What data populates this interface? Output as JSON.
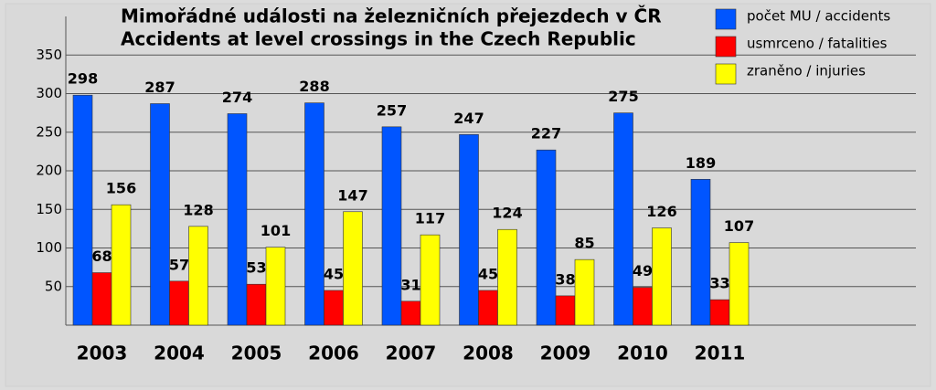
{
  "chart_data": {
    "type": "bar",
    "title": "Mimořádné události na železničních přejezdech v ČR",
    "subtitle": "Accidents at level crossings in the Czech Republic",
    "categories": [
      "2003",
      "2004",
      "2005",
      "2006",
      "2007",
      "2008",
      "2009",
      "2010",
      "2011"
    ],
    "series": [
      {
        "name": "počet MU / accidents",
        "color": "#0055ff",
        "values": [
          298,
          287,
          274,
          288,
          257,
          247,
          227,
          275,
          189
        ]
      },
      {
        "name": "usmrceno / fatalities",
        "color": "#ff0000",
        "values": [
          68,
          57,
          53,
          45,
          31,
          45,
          38,
          49,
          33
        ]
      },
      {
        "name": "zraněno / injuries",
        "color": "#ffff00",
        "values": [
          156,
          128,
          101,
          147,
          117,
          124,
          85,
          126,
          107
        ]
      }
    ],
    "ylim": [
      0,
      400
    ],
    "yticks": [
      50,
      100,
      150,
      200,
      250,
      300,
      350
    ],
    "grid": true,
    "legend": "top-right"
  }
}
